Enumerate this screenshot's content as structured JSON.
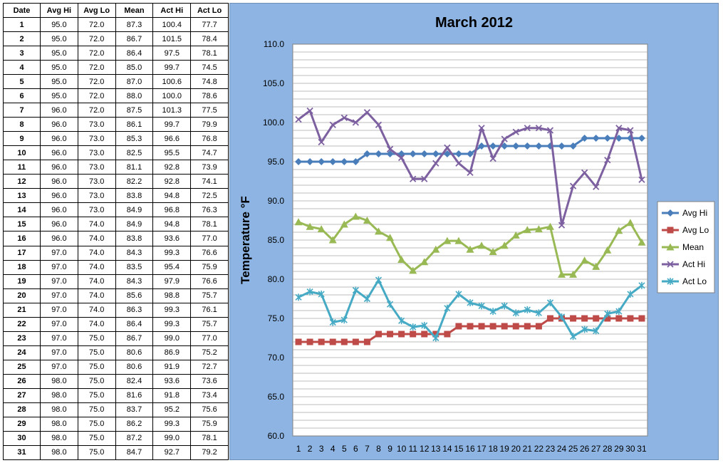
{
  "table": {
    "headers": [
      "Date",
      "Avg Hi",
      "Avg Lo",
      "Mean",
      "Act Hi",
      "Act Lo"
    ],
    "rows": [
      [
        "1",
        "95.0",
        "72.0",
        "87.3",
        "100.4",
        "77.7"
      ],
      [
        "2",
        "95.0",
        "72.0",
        "86.7",
        "101.5",
        "78.4"
      ],
      [
        "3",
        "95.0",
        "72.0",
        "86.4",
        "97.5",
        "78.1"
      ],
      [
        "4",
        "95.0",
        "72.0",
        "85.0",
        "99.7",
        "74.5"
      ],
      [
        "5",
        "95.0",
        "72.0",
        "87.0",
        "100.6",
        "74.8"
      ],
      [
        "6",
        "95.0",
        "72.0",
        "88.0",
        "100.0",
        "78.6"
      ],
      [
        "7",
        "96.0",
        "72.0",
        "87.5",
        "101.3",
        "77.5"
      ],
      [
        "8",
        "96.0",
        "73.0",
        "86.1",
        "99.7",
        "79.9"
      ],
      [
        "9",
        "96.0",
        "73.0",
        "85.3",
        "96.6",
        "76.8"
      ],
      [
        "10",
        "96.0",
        "73.0",
        "82.5",
        "95.5",
        "74.7"
      ],
      [
        "11",
        "96.0",
        "73.0",
        "81.1",
        "92.8",
        "73.9"
      ],
      [
        "12",
        "96.0",
        "73.0",
        "82.2",
        "92.8",
        "74.1"
      ],
      [
        "13",
        "96.0",
        "73.0",
        "83.8",
        "94.8",
        "72.5"
      ],
      [
        "14",
        "96.0",
        "73.0",
        "84.9",
        "96.8",
        "76.3"
      ],
      [
        "15",
        "96.0",
        "74.0",
        "84.9",
        "94.8",
        "78.1"
      ],
      [
        "16",
        "96.0",
        "74.0",
        "83.8",
        "93.6",
        "77.0"
      ],
      [
        "17",
        "97.0",
        "74.0",
        "84.3",
        "99.3",
        "76.6"
      ],
      [
        "18",
        "97.0",
        "74.0",
        "83.5",
        "95.4",
        "75.9"
      ],
      [
        "19",
        "97.0",
        "74.0",
        "84.3",
        "97.9",
        "76.6"
      ],
      [
        "20",
        "97.0",
        "74.0",
        "85.6",
        "98.8",
        "75.7"
      ],
      [
        "21",
        "97.0",
        "74.0",
        "86.3",
        "99.3",
        "76.1"
      ],
      [
        "22",
        "97.0",
        "74.0",
        "86.4",
        "99.3",
        "75.7"
      ],
      [
        "23",
        "97.0",
        "75.0",
        "86.7",
        "99.0",
        "77.0"
      ],
      [
        "24",
        "97.0",
        "75.0",
        "80.6",
        "86.9",
        "75.2"
      ],
      [
        "25",
        "97.0",
        "75.0",
        "80.6",
        "91.9",
        "72.7"
      ],
      [
        "26",
        "98.0",
        "75.0",
        "82.4",
        "93.6",
        "73.6"
      ],
      [
        "27",
        "98.0",
        "75.0",
        "81.6",
        "91.8",
        "73.4"
      ],
      [
        "28",
        "98.0",
        "75.0",
        "83.7",
        "95.2",
        "75.6"
      ],
      [
        "29",
        "98.0",
        "75.0",
        "86.2",
        "99.3",
        "75.9"
      ],
      [
        "30",
        "98.0",
        "75.0",
        "87.2",
        "99.0",
        "78.1"
      ],
      [
        "31",
        "98.0",
        "75.0",
        "84.7",
        "92.7",
        "79.2"
      ]
    ]
  },
  "chart_data": {
    "type": "line",
    "title": "March 2012",
    "xlabel": "",
    "ylabel": "Temperature °F",
    "ylim": [
      60,
      110
    ],
    "yticks": [
      "60.0",
      "65.0",
      "70.0",
      "75.0",
      "80.0",
      "85.0",
      "90.0",
      "95.0",
      "100.0",
      "105.0",
      "110.0"
    ],
    "x": [
      1,
      2,
      3,
      4,
      5,
      6,
      7,
      8,
      9,
      10,
      11,
      12,
      13,
      14,
      15,
      16,
      17,
      18,
      19,
      20,
      21,
      22,
      23,
      24,
      25,
      26,
      27,
      28,
      29,
      30,
      31
    ],
    "grid": true,
    "legend_position": "right",
    "series": [
      {
        "name": "Avg Hi",
        "color": "#4a7ebb",
        "marker": "diamond",
        "values": [
          95.0,
          95.0,
          95.0,
          95.0,
          95.0,
          95.0,
          96.0,
          96.0,
          96.0,
          96.0,
          96.0,
          96.0,
          96.0,
          96.0,
          96.0,
          96.0,
          97.0,
          97.0,
          97.0,
          97.0,
          97.0,
          97.0,
          97.0,
          97.0,
          97.0,
          98.0,
          98.0,
          98.0,
          98.0,
          98.0,
          98.0
        ]
      },
      {
        "name": "Avg Lo",
        "color": "#be4b48",
        "marker": "square",
        "values": [
          72.0,
          72.0,
          72.0,
          72.0,
          72.0,
          72.0,
          72.0,
          73.0,
          73.0,
          73.0,
          73.0,
          73.0,
          73.0,
          73.0,
          74.0,
          74.0,
          74.0,
          74.0,
          74.0,
          74.0,
          74.0,
          74.0,
          75.0,
          75.0,
          75.0,
          75.0,
          75.0,
          75.0,
          75.0,
          75.0,
          75.0
        ]
      },
      {
        "name": "Mean",
        "color": "#98b954",
        "marker": "triangle",
        "values": [
          87.3,
          86.7,
          86.4,
          85.0,
          87.0,
          88.0,
          87.5,
          86.1,
          85.3,
          82.5,
          81.1,
          82.2,
          83.8,
          84.9,
          84.9,
          83.8,
          84.3,
          83.5,
          84.3,
          85.6,
          86.3,
          86.4,
          86.7,
          80.6,
          80.6,
          82.4,
          81.6,
          83.7,
          86.2,
          87.2,
          84.7
        ]
      },
      {
        "name": "Act Hi",
        "color": "#7d60a0",
        "marker": "x",
        "values": [
          100.4,
          101.5,
          97.5,
          99.7,
          100.6,
          100.0,
          101.3,
          99.7,
          96.6,
          95.5,
          92.8,
          92.8,
          94.8,
          96.8,
          94.8,
          93.6,
          99.3,
          95.4,
          97.9,
          98.8,
          99.3,
          99.3,
          99.0,
          86.9,
          91.9,
          93.6,
          91.8,
          95.2,
          99.3,
          99.0,
          92.7
        ]
      },
      {
        "name": "Act Lo",
        "color": "#46aac5",
        "marker": "asterisk",
        "values": [
          77.7,
          78.4,
          78.1,
          74.5,
          74.8,
          78.6,
          77.5,
          79.9,
          76.8,
          74.7,
          73.9,
          74.1,
          72.5,
          76.3,
          78.1,
          77.0,
          76.6,
          75.9,
          76.6,
          75.7,
          76.1,
          75.7,
          77.0,
          75.2,
          72.7,
          73.6,
          73.4,
          75.6,
          75.9,
          78.1,
          79.2
        ]
      }
    ]
  }
}
